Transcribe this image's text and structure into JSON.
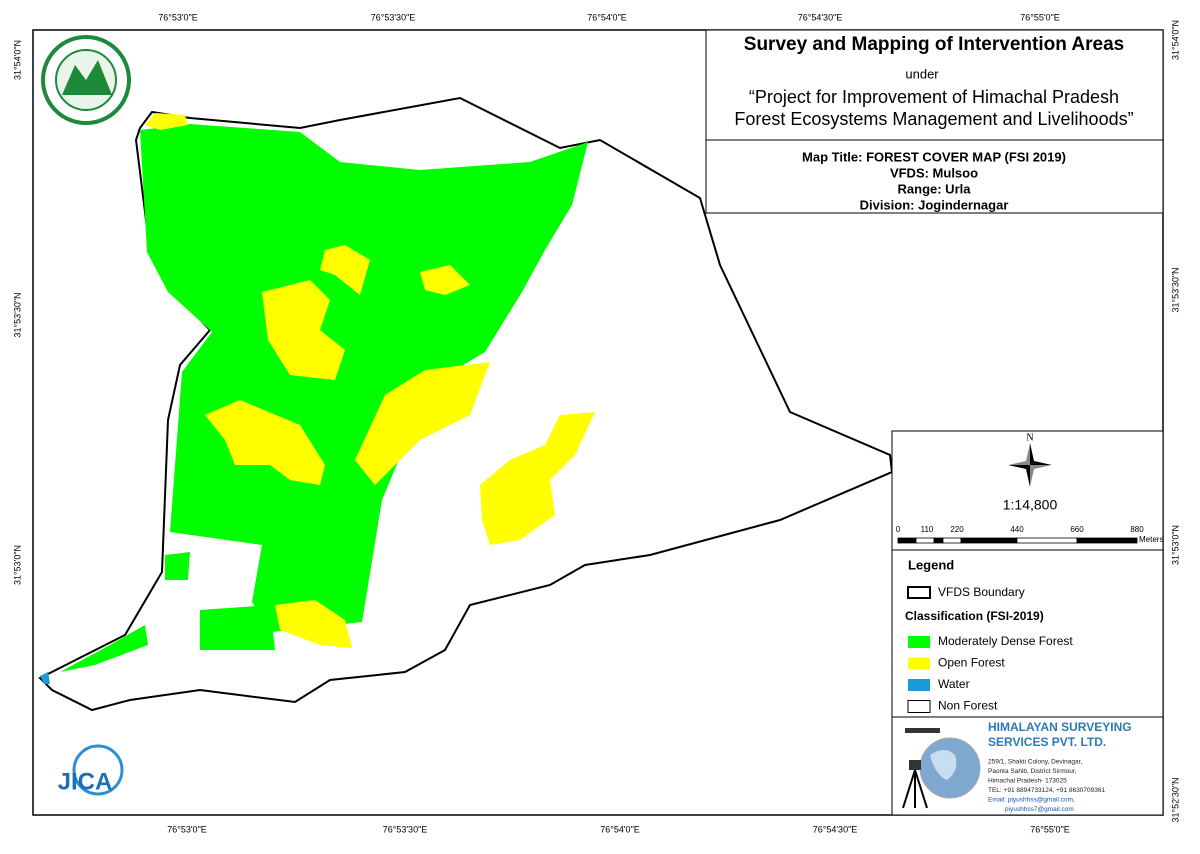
{
  "header": {
    "title": "Survey and Mapping of Intervention Areas",
    "under": "under",
    "project_line1": "“Project for Improvement of Himachal Pradesh",
    "project_line2": "Forest Ecosystems Management and Livelihoods”"
  },
  "map_info": {
    "map_title": "Map Title: FOREST COVER MAP (FSI 2019)",
    "vfds": "VFDS: Mulsoo",
    "range": "Range: Urla",
    "division": "Division: Jogindernagar"
  },
  "grid_labels": {
    "top": [
      "76°53'0\"E",
      "76°53'30\"E",
      "76°54'0\"E",
      "76°54'30\"E",
      "76°55'0\"E"
    ],
    "bottom": [
      "76°53'0\"E",
      "76°53'30\"E",
      "76°54'0\"E",
      "76°54'30\"E",
      "76°55'0\"E"
    ],
    "left": [
      "31°54'0\"N",
      "31°53'30\"N",
      "31°53'0\"N"
    ],
    "right": [
      "31°54'0\"N",
      "31°53'30\"N",
      "31°53'0\"N",
      "31°52'30\"N"
    ]
  },
  "scale": {
    "north": "N",
    "ratio": "1:14,800",
    "ticks": [
      "0",
      "110",
      "220",
      "440",
      "660",
      "880"
    ],
    "unit": "Meters"
  },
  "legend": {
    "title": "Legend",
    "boundary": "VFDS Boundary",
    "classification_title": "Classification (FSI-2019)",
    "items": [
      {
        "label": "Moderately Dense Forest",
        "color": "#00ff00"
      },
      {
        "label": "Open Forest",
        "color": "#ffff00"
      },
      {
        "label": "Water",
        "color": "#1a9ad6"
      },
      {
        "label": "Non Forest",
        "color": "#ffffff"
      }
    ]
  },
  "company": {
    "name_line1": "HIMALAYAN SURVEYING",
    "name_line2": "SERVICES PVT. LTD.",
    "address": [
      "259/1, Shakti Colony, Devinagar,",
      "Paonta Sahib, District Sirmour,",
      "Himachal Pradesh- 173025",
      "TEL: +91 8894733124, +91 8630709361",
      "Email: piyushhss@gmail.com,",
      "piyushhss7@gmail.com"
    ]
  },
  "logos": {
    "jica": "JICA"
  }
}
